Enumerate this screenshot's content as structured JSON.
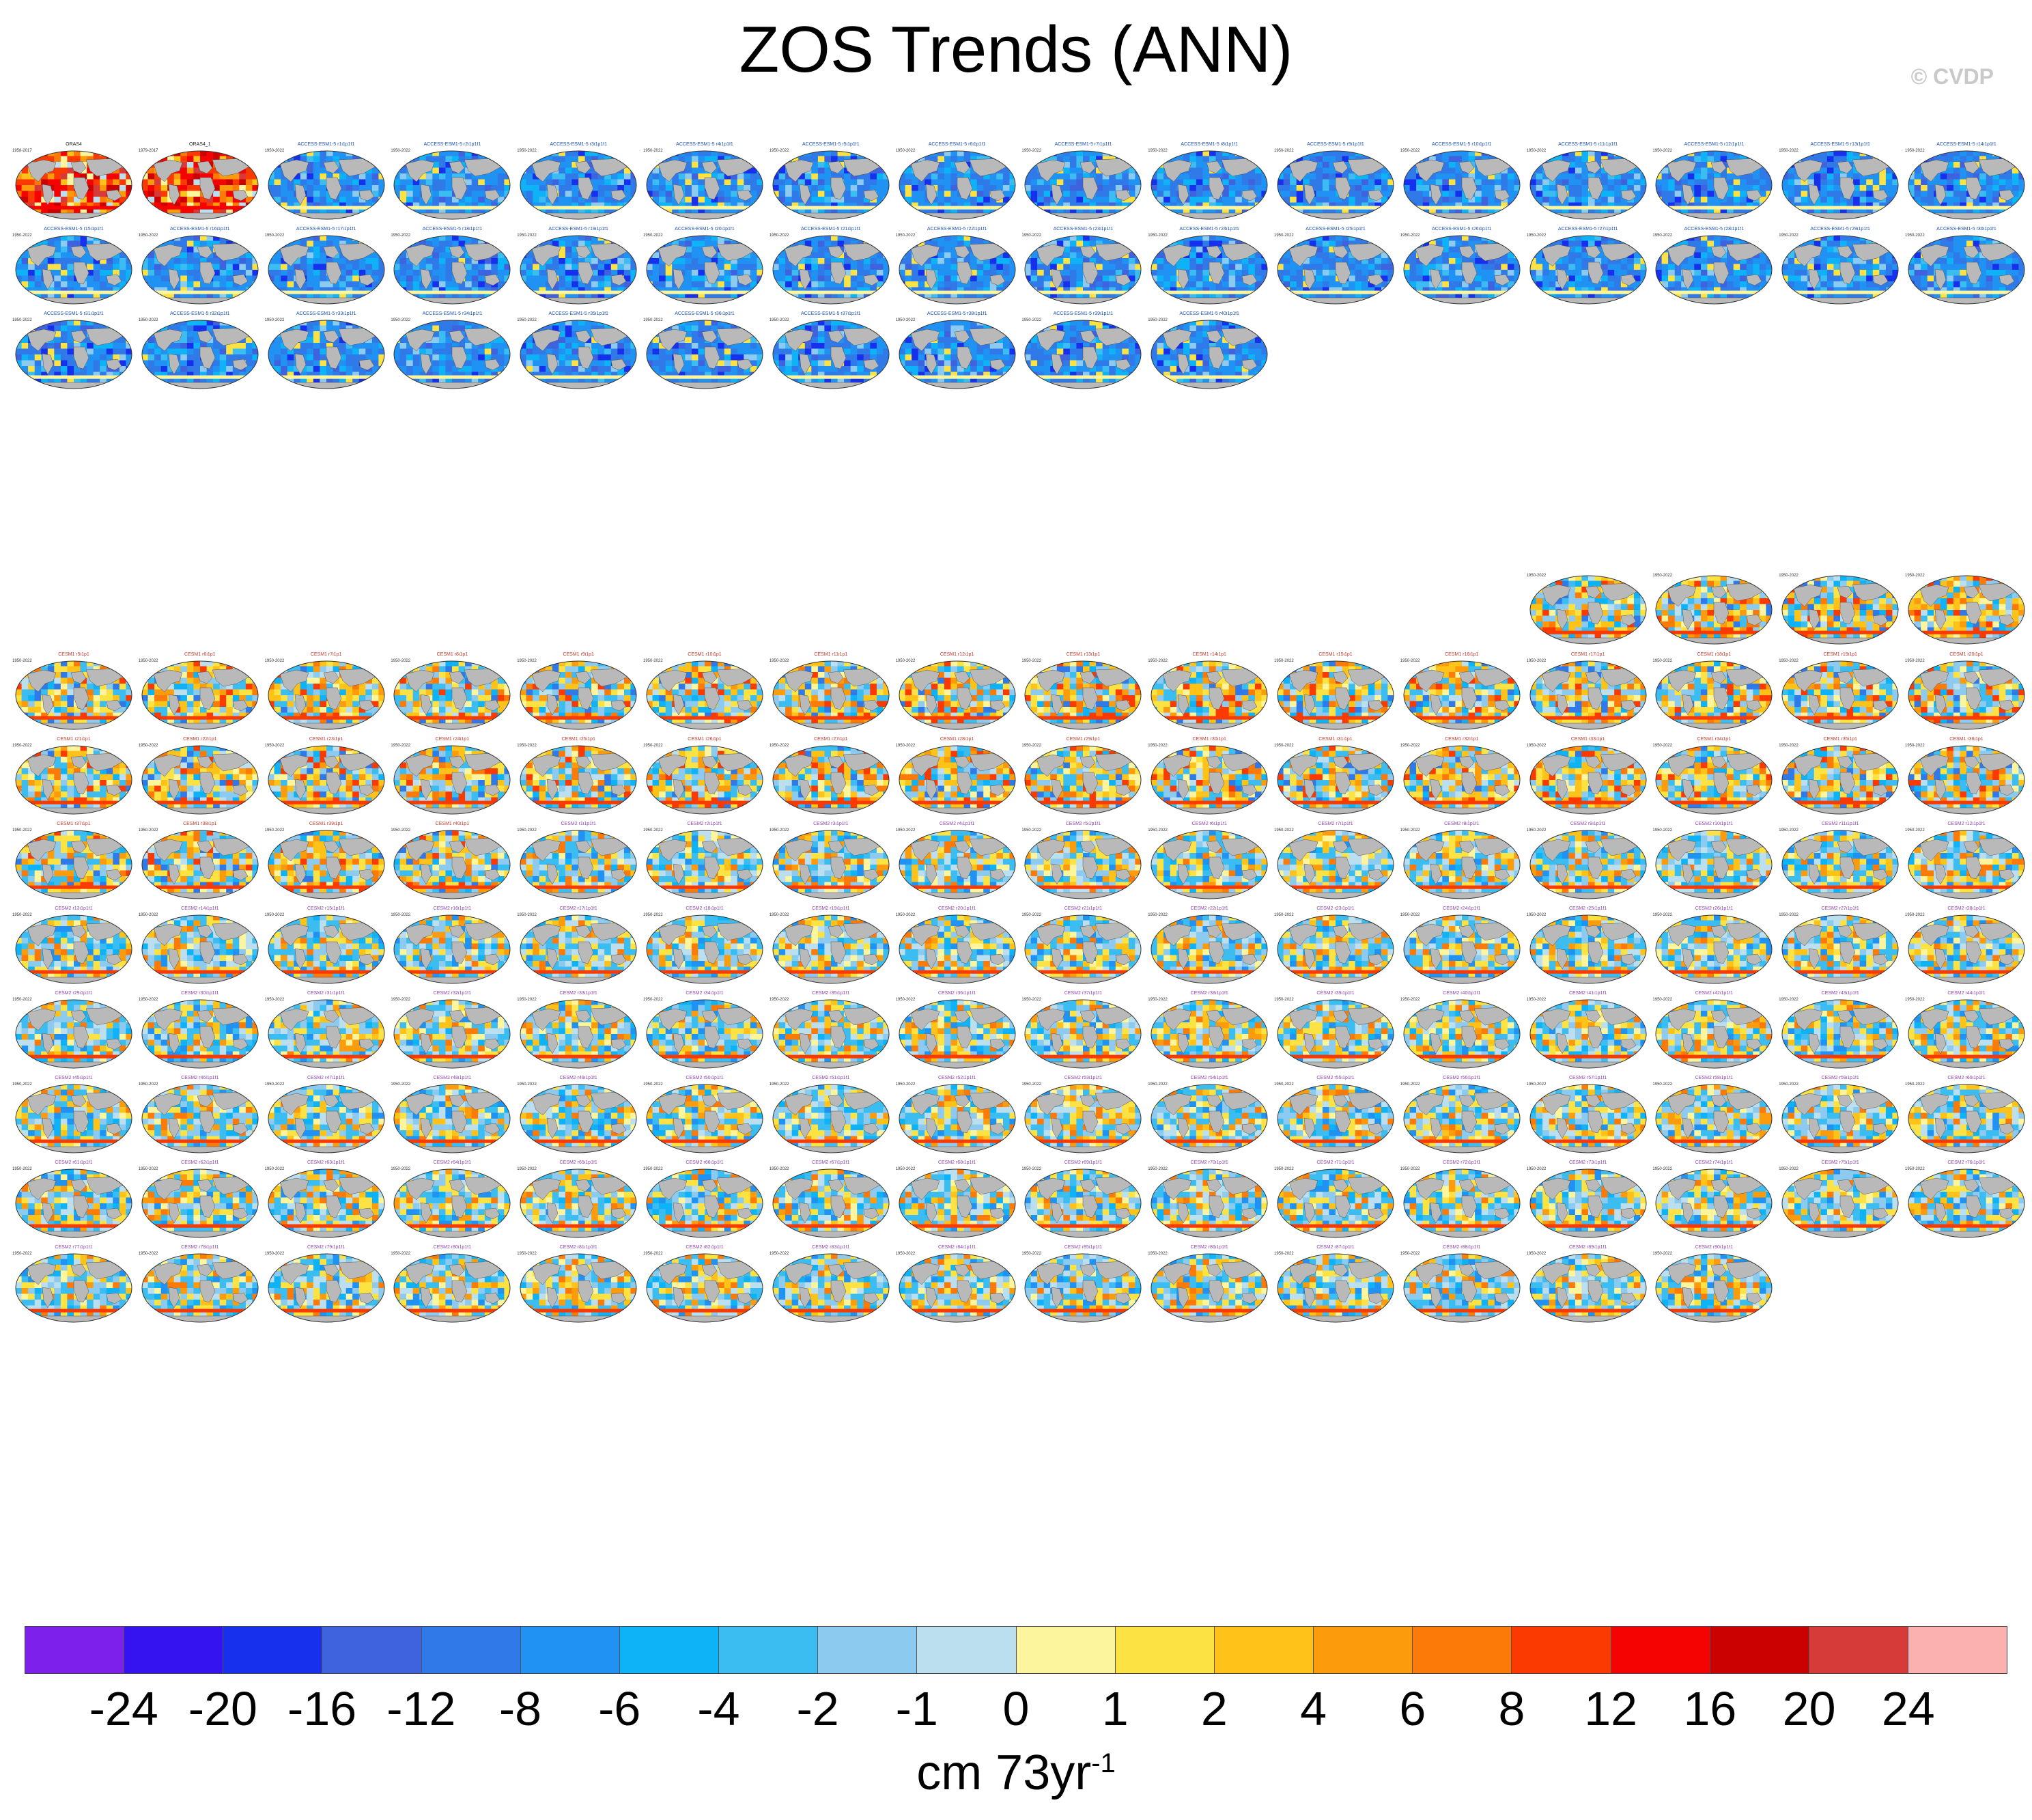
{
  "title": "ZOS Trends (ANN)",
  "copyright": "© CVDP",
  "chart_data": {
    "type": "heatmap",
    "title": "ZOS Trends (ANN)",
    "variable": "ZOS",
    "season": "ANN",
    "panel_content": "annual-mean sea surface height (zos) linear trend maps, one global map per dataset / ensemble member",
    "panel_groups": [
      {
        "name": "observations",
        "count": 2,
        "titles": [
          "ORAS4",
          "ORAS4_1"
        ],
        "years": [
          "1958-2017",
          "1979-2017"
        ]
      },
      {
        "name": "ACCESS-ESM1-5",
        "count": 40,
        "title_pattern": "ACCESS-ESM1-5 r{n}i1p1f1",
        "years": "1950-2022"
      },
      {
        "name": "CESM1",
        "count": 40,
        "title_pattern": "CESM1 r{n}i1p1",
        "years": "1950-2022"
      },
      {
        "name": "CESM2",
        "count": 90,
        "title_pattern": "CESM2 r{n}i1p1f1",
        "years": "1950-2022"
      }
    ],
    "colorbar": {
      "levels": [
        "-24",
        "-20",
        "-16",
        "-12",
        "-8",
        "-6",
        "-4",
        "-2",
        "-1",
        "0",
        "1",
        "2",
        "4",
        "6",
        "8",
        "12",
        "16",
        "20",
        "24"
      ],
      "colors": [
        "#7d20ec",
        "#3512f0",
        "#1630ee",
        "#3f62df",
        "#2f7ae8",
        "#1f92f3",
        "#0eb2f7",
        "#3cbdf1",
        "#8ccbef",
        "#bcdfef",
        "#fdf59e",
        "#fde243",
        "#fec219",
        "#fc9b0b",
        "#fc7a08",
        "#fb3a02",
        "#f50202",
        "#cb0101",
        "#d63a39",
        "#fcb1b1"
      ],
      "units_text": "cm 73yr",
      "units_exponent": "-1"
    }
  }
}
